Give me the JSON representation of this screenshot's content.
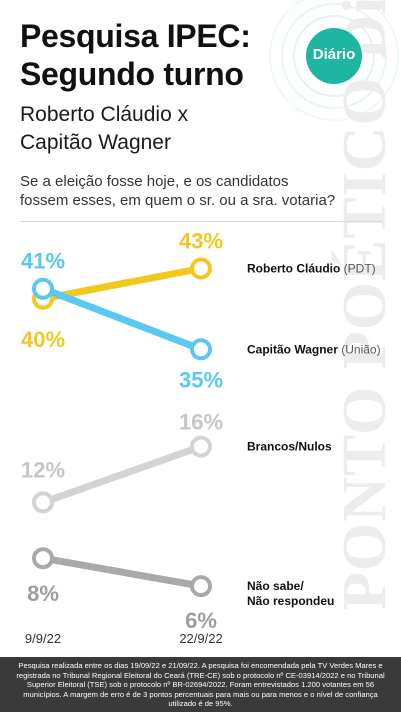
{
  "header": {
    "title_line1": "Pesquisa IPEC:",
    "title_line2": "Segundo turno",
    "subtitle_line1": "Roberto Cláudio x",
    "subtitle_line2": "Capitão Wagner",
    "question_line1": "Se a eleição fosse hoje, e os candidatos",
    "question_line2": "fossem esses, em quem o sr. ou a sra. votaria?",
    "logo": "Diário"
  },
  "watermark": "PONTO POÉTICO Diário",
  "colors": {
    "roberto": "#f2c720",
    "wagner": "#5ac8f0",
    "brancos": "#d3d3d3",
    "nao_sabe": "#a9a9a9",
    "accent": "#1fb5a3"
  },
  "chart_data": {
    "type": "line",
    "categories": [
      "9/9/22",
      "22/9/22"
    ],
    "series": [
      {
        "name": "Roberto Cláudio",
        "party": "(PDT)",
        "values": [
          40,
          43
        ],
        "labels": [
          "40%",
          "43%"
        ]
      },
      {
        "name": "Capitão Wagner",
        "party": "(União)",
        "values": [
          41,
          35
        ],
        "labels": [
          "41%",
          "35%"
        ]
      },
      {
        "name": "Brancos/Nulos",
        "party": "",
        "values": [
          12,
          16
        ],
        "labels": [
          "12%",
          "16%"
        ]
      },
      {
        "name": "Não sabe/",
        "name_line2": "Não respondeu",
        "party": "",
        "values": [
          8,
          6
        ],
        "labels": [
          "8%",
          "6%"
        ]
      }
    ]
  },
  "footer": "Pesquisa realizada entre os dias 19/09/22 e 21/09/22. A pesquisa foi encomendada pela TV Verdes Mares e registrada no Tribunal Regional Eleitoral do Ceará (TRE-CE) sob o protocolo nº CE-03914/2022 e no Tribunal Superior Eleitoral (TSE) sob o protocolo nº BR-02694/2022. Foram entrevistados 1.200 votantes em 56 municípios. A margem de erro é de 3 pontos percentuais para mais ou para menos e o nível de confiança utilizado é de 95%."
}
